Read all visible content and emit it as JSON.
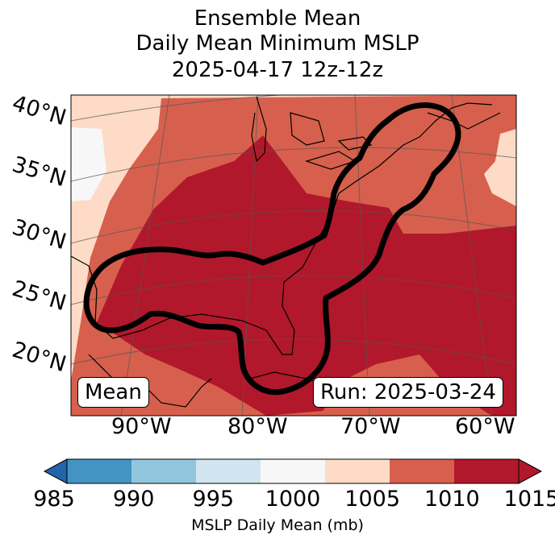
{
  "title": {
    "line1": "Ensemble Mean",
    "line2": "Daily Mean Minimum MSLP",
    "line3": "2025-04-17 12z-12z"
  },
  "map": {
    "lat_labels": [
      "40°N",
      "35°N",
      "30°N",
      "25°N",
      "20°N"
    ],
    "lon_labels": [
      "90°W",
      "80°W",
      "70°W",
      "60°W"
    ],
    "mean_box": "Mean",
    "run_box": "Run: 2025-03-24"
  },
  "colorbar": {
    "label": "MSLP Daily Mean (mb)",
    "ticks": [
      "985",
      "990",
      "995",
      "1000",
      "1005",
      "1010",
      "1015"
    ],
    "colors": [
      "#4393c3",
      "#92c5de",
      "#d1e5f0",
      "#f7f7f7",
      "#fddbc7",
      "#d6604d",
      "#b2182b"
    ],
    "under_color": "#2166ac",
    "over_color": "#b2182b"
  },
  "colors": {
    "field_1000_1005": "#f7f7f7",
    "field_1005_1010": "#fddbc7",
    "field_1010_1015": "#d6604d",
    "field_above_1015": "#b2182b",
    "contour": "#000000"
  }
}
